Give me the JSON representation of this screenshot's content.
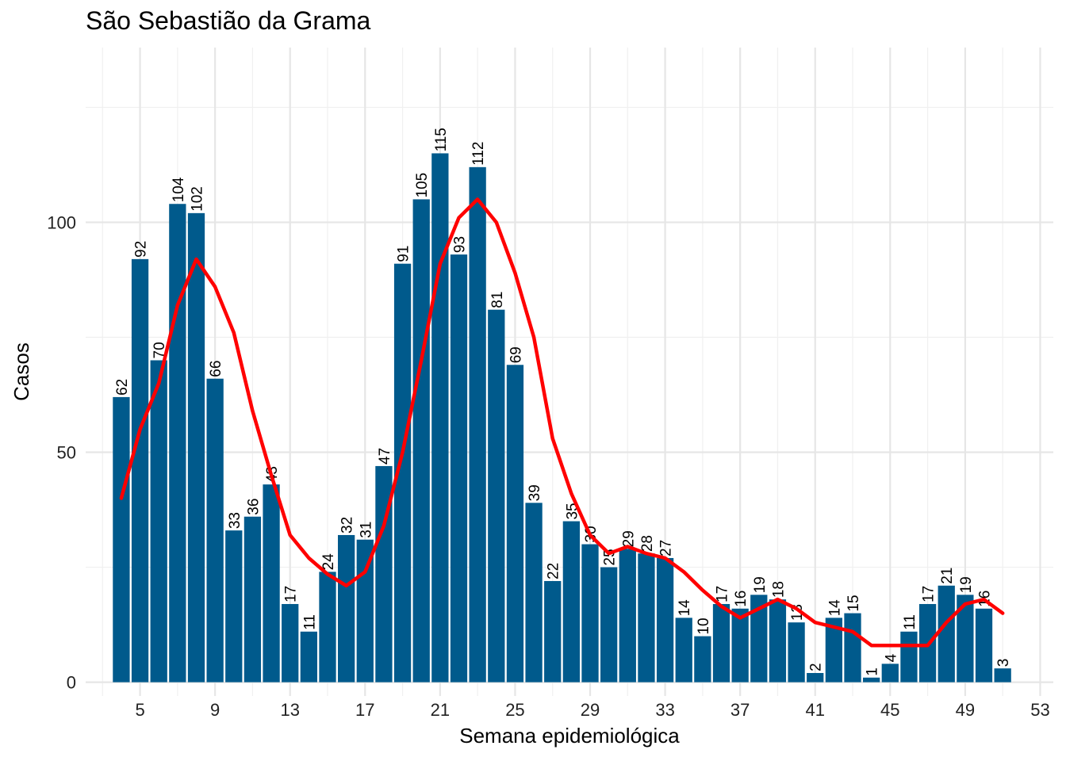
{
  "chart_data": {
    "type": "bar",
    "title": "São Sebastião da Grama",
    "xlabel": "Semana epidemiológica",
    "ylabel": "Casos",
    "x": [
      4,
      5,
      6,
      7,
      8,
      9,
      10,
      11,
      12,
      13,
      14,
      15,
      16,
      17,
      18,
      19,
      20,
      21,
      22,
      23,
      24,
      25,
      26,
      27,
      28,
      29,
      30,
      31,
      32,
      33,
      34,
      35,
      36,
      37,
      38,
      39,
      40,
      41,
      42,
      43,
      44,
      45,
      46,
      47,
      48,
      49,
      50,
      51
    ],
    "values": [
      62,
      92,
      70,
      104,
      102,
      66,
      33,
      36,
      43,
      17,
      11,
      24,
      32,
      31,
      47,
      91,
      105,
      115,
      93,
      112,
      81,
      69,
      39,
      22,
      35,
      30,
      25,
      29,
      28,
      27,
      14,
      10,
      17,
      16,
      19,
      18,
      13,
      2,
      14,
      15,
      1,
      4,
      11,
      17,
      21,
      19,
      16,
      3
    ],
    "moving_average": [
      40,
      55,
      65,
      82,
      92,
      86,
      76,
      59,
      45,
      32,
      27,
      23.5,
      21,
      24,
      34,
      50,
      70,
      91,
      101,
      105,
      100,
      89,
      75,
      53,
      41,
      32,
      28,
      29.5,
      28,
      27,
      24,
      20,
      16.5,
      14,
      16,
      18,
      16,
      13,
      12,
      11,
      8,
      8,
      8,
      8,
      13,
      17,
      18,
      15
    ],
    "xticks": [
      5,
      9,
      13,
      17,
      21,
      25,
      29,
      33,
      37,
      41,
      45,
      49,
      53
    ],
    "yticks": [
      0,
      50,
      100
    ],
    "xlim": [
      2.1,
      53.7
    ],
    "ylim": [
      -3,
      138
    ],
    "grid": true,
    "bar_color": "#005a8c",
    "line_color": "#ff0000"
  }
}
